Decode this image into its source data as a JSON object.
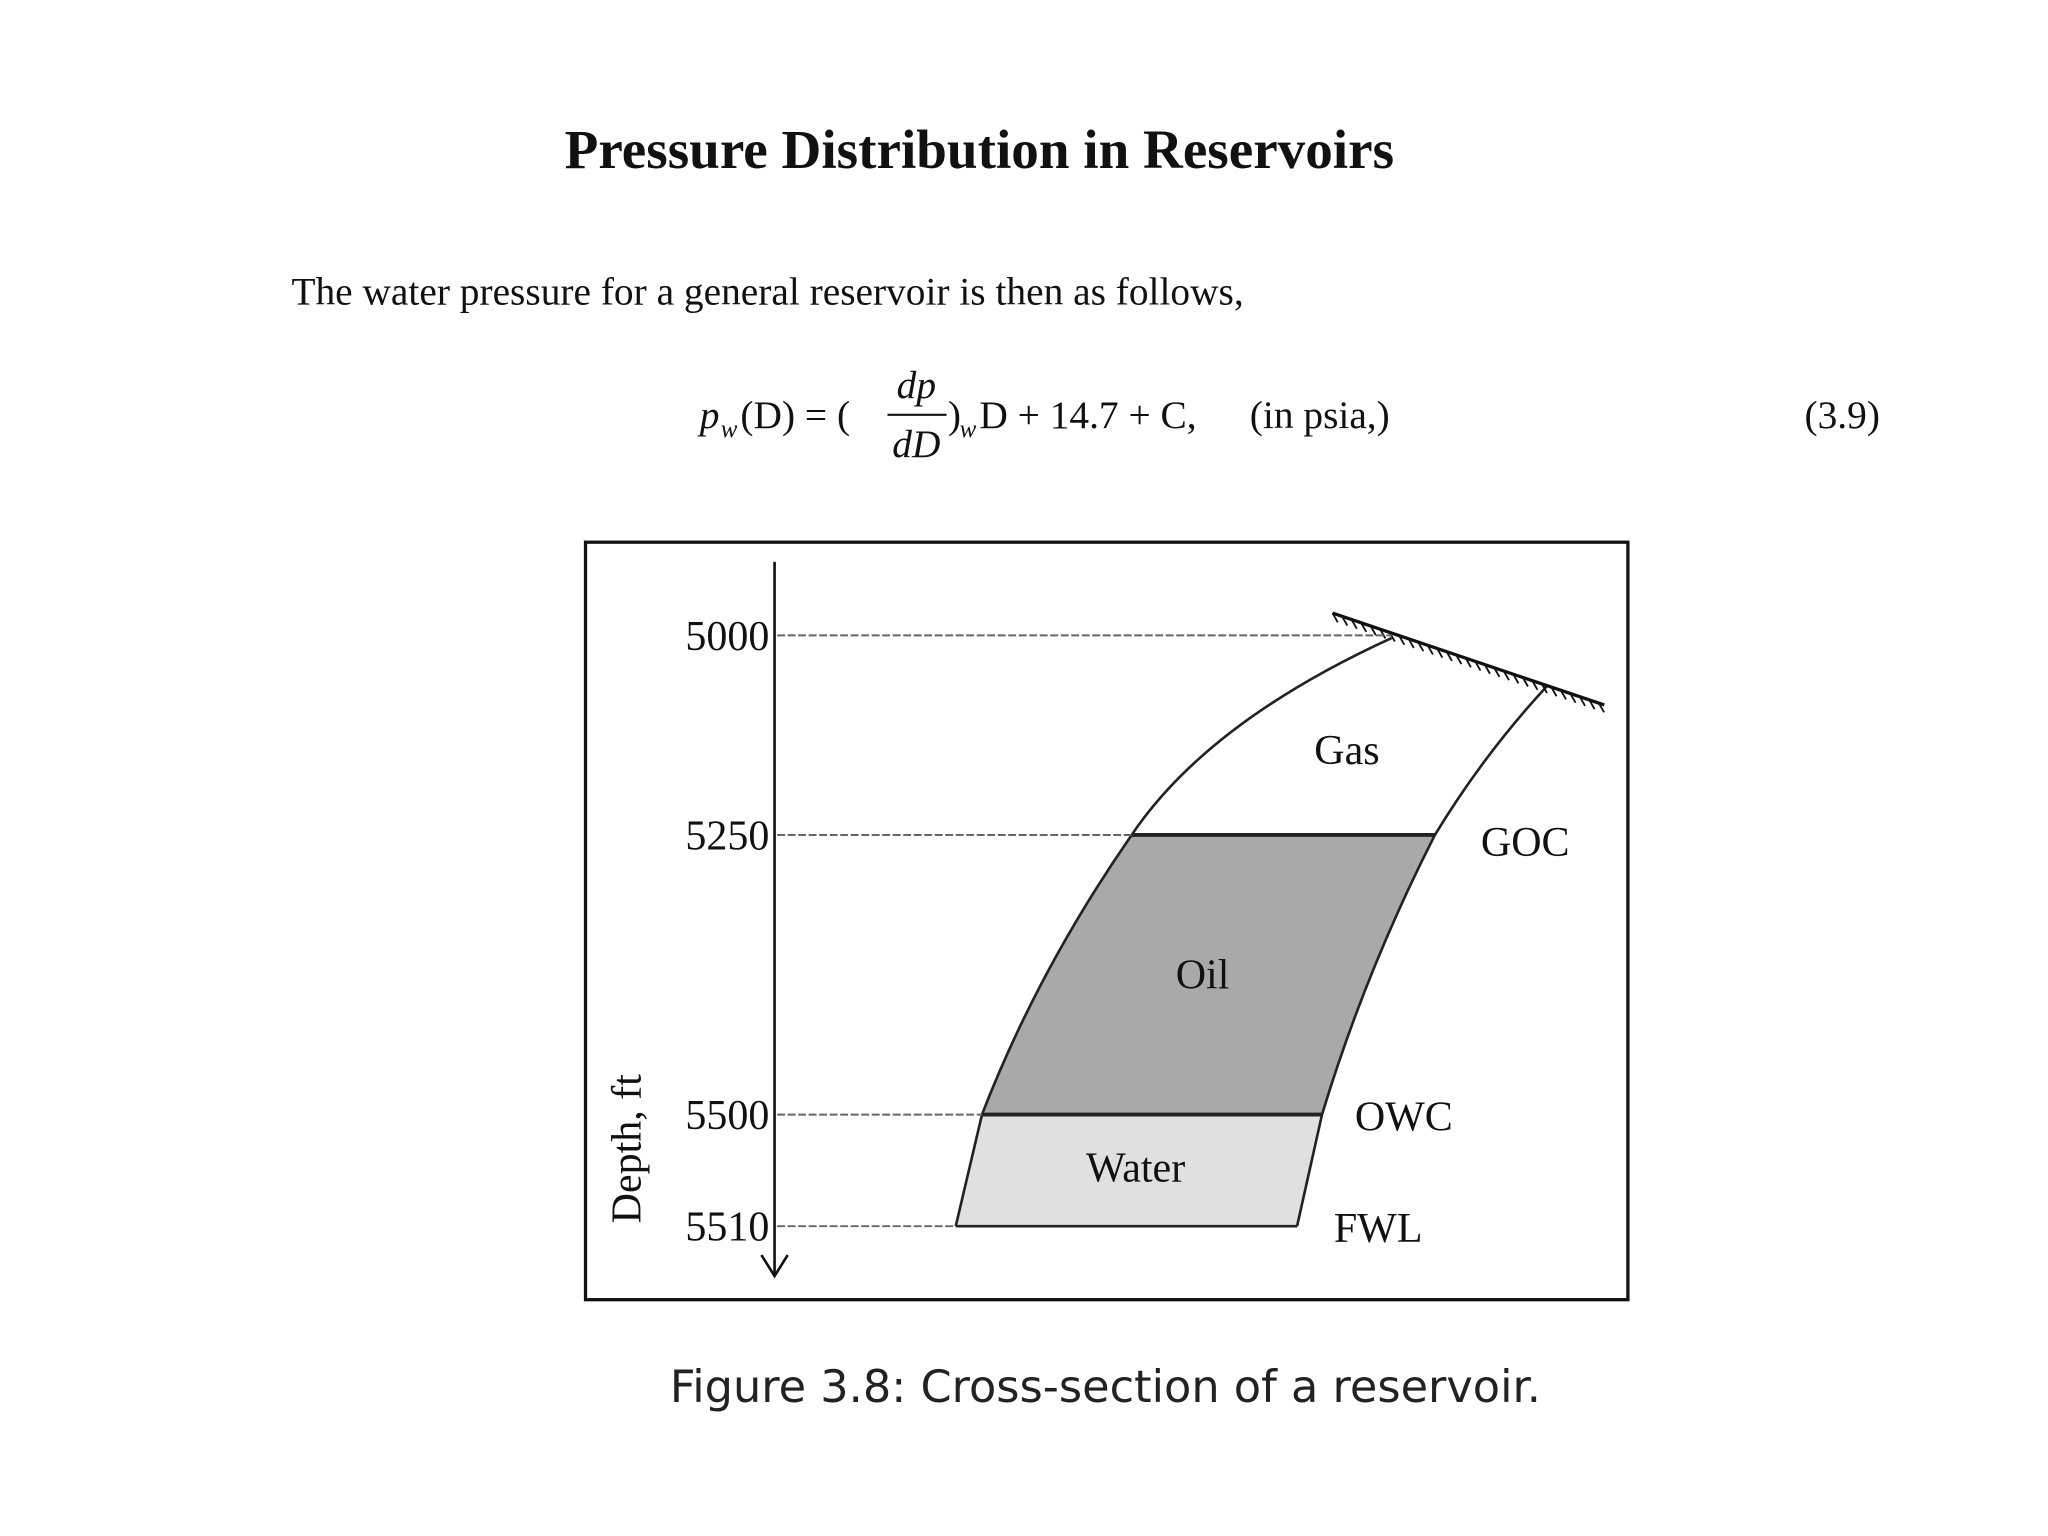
{
  "header": {
    "title": "Pressure Distribution in Reservoirs"
  },
  "paragraph": "The water pressure for a general reservoir is then as follows,",
  "equation": {
    "lhs": "p",
    "lhs_sub": "w",
    "lhs_arg": "(D) = (",
    "numerator": "dp",
    "denominator": "dD",
    "close": ")",
    "close_sub": "w",
    "rest": "D + 14.7 + C,",
    "unit": "(in psia,)",
    "number": "(3.9)"
  },
  "figure": {
    "axis_label": "Depth, ft",
    "ticks": [
      5000,
      5250,
      5500,
      5510
    ],
    "zones": [
      "Gas",
      "Oil",
      "Water"
    ],
    "contacts": [
      "GOC",
      "OWC",
      "FWL"
    ],
    "caption": "Figure 3.8: Cross-section of a reservoir."
  }
}
